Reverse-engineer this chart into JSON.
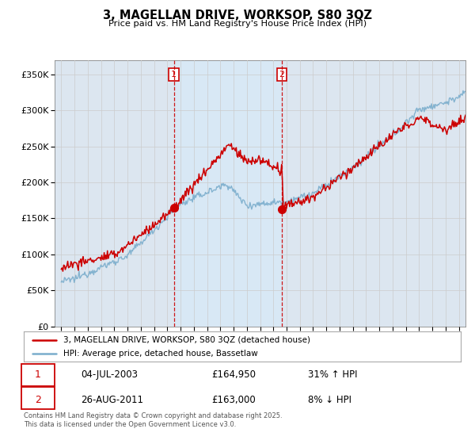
{
  "title": "3, MAGELLAN DRIVE, WORKSOP, S80 3QZ",
  "subtitle": "Price paid vs. HM Land Registry's House Price Index (HPI)",
  "legend_line1": "3, MAGELLAN DRIVE, WORKSOP, S80 3QZ (detached house)",
  "legend_line2": "HPI: Average price, detached house, Bassetlaw",
  "sale1_date": "04-JUL-2003",
  "sale1_price": "£164,950",
  "sale1_hpi": "31% ↑ HPI",
  "sale1_year": 2003.5,
  "sale1_price_val": 164950,
  "sale2_date": "26-AUG-2011",
  "sale2_price": "£163,000",
  "sale2_hpi": "8% ↓ HPI",
  "sale2_year": 2011.65,
  "sale2_price_val": 163000,
  "red_color": "#cc0000",
  "blue_color": "#7aadcc",
  "shade_color": "#d8e8f5",
  "bg_color": "#dce6f0",
  "plot_bg": "#ffffff",
  "vline_color": "#cc0000",
  "grid_color": "#cccccc",
  "footnote": "Contains HM Land Registry data © Crown copyright and database right 2025.\nThis data is licensed under the Open Government Licence v3.0.",
  "ylim": [
    0,
    370000
  ],
  "yticks": [
    0,
    50000,
    100000,
    150000,
    200000,
    250000,
    300000,
    350000
  ],
  "xlim_start": 1994.5,
  "xlim_end": 2025.5
}
